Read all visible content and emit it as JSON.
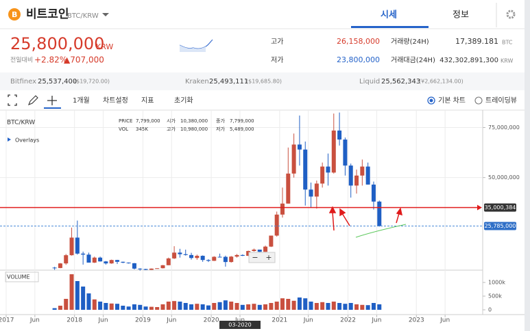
{
  "header": {
    "title": "비트코인",
    "pair": "BTC/KRW",
    "tabs": [
      "시세",
      "정보"
    ]
  },
  "summary": {
    "price": "25,800,000",
    "currency": "KRW",
    "change_label": "전일대비",
    "change_pct": "+2.82%",
    "change_abs": "▲707,000",
    "high_label": "고가",
    "high": "26,158,000",
    "low_label": "저가",
    "low": "23,800,000",
    "volume_label": "거래량(24H)",
    "volume": "17,389.181",
    "volume_unit": "BTC",
    "amount_label": "거래대금(24H)",
    "amount": "432,302,891,300",
    "amount_unit": "KRW"
  },
  "exchanges": [
    {
      "name": "Bitfinex",
      "price": "25,537,400",
      "converted": "($19,720.00)"
    },
    {
      "name": "Kraken",
      "price": "25,493,111",
      "converted": "($19,685.80)"
    },
    {
      "name": "Liquid",
      "price": "25,562,343",
      "converted": "(¥2,662,134.00)"
    }
  ],
  "toolbar": {
    "period": "1개월",
    "settings": "차트설정",
    "indicators": "지표",
    "reset": "초기화",
    "basic_chart": "기본 차트",
    "tradingview": "트레이딩뷰"
  },
  "chart_info": {
    "price_label": "PRICE",
    "price": "7,799,000",
    "vol_label": "VOL",
    "vol": "345K",
    "open_label": "시가",
    "open": "10,380,000",
    "high_label": "고가",
    "high": "10,980,000",
    "close_label": "종가",
    "close": "7,799,000",
    "low_label": "저가",
    "low": "5,489,000"
  },
  "chart_controls": {
    "zoom_out": "−",
    "zoom_in": "+"
  },
  "chart_data": {
    "type": "candlestick",
    "title": "BTC/KRW",
    "overlays": "Overlays",
    "volume_title": "VOLUME",
    "cursor_label": "03-2020",
    "up_color": "#c9503f",
    "down_color": "#1f5fc4",
    "categories": [
      "09-2017",
      "10-2017",
      "11-2017",
      "12-2017",
      "01-2018",
      "02-2018",
      "03-2018",
      "04-2018",
      "05-2018",
      "06-2018",
      "07-2018",
      "08-2018",
      "09-2018",
      "10-2018",
      "11-2018",
      "12-2018",
      "01-2019",
      "02-2019",
      "03-2019",
      "04-2019",
      "05-2019",
      "06-2019",
      "07-2019",
      "08-2019",
      "09-2019",
      "10-2019",
      "11-2019",
      "12-2019",
      "01-2020",
      "02-2020",
      "03-2020",
      "04-2020",
      "05-2020",
      "06-2020",
      "07-2020",
      "08-2020",
      "09-2020",
      "10-2020",
      "11-2020",
      "12-2020",
      "01-2021",
      "02-2021",
      "03-2021",
      "04-2021",
      "05-2021",
      "06-2021",
      "07-2021",
      "08-2021",
      "09-2021",
      "10-2021",
      "11-2021",
      "12-2021",
      "01-2022",
      "02-2022",
      "03-2022",
      "04-2022",
      "05-2022",
      "06-2022"
    ],
    "open": [
      5000000,
      4800000,
      7100000,
      11200000,
      20000000,
      12000000,
      11500000,
      7500000,
      10000000,
      8100000,
      7100000,
      8800000,
      7900000,
      7500000,
      7200000,
      4500000,
      4300000,
      3900000,
      4500000,
      4700000,
      6200000,
      9600000,
      12500000,
      11700000,
      11300000,
      9800000,
      10900000,
      8800000,
      8400000,
      10400000,
      10380000,
      7799000,
      10500000,
      11300000,
      10900000,
      13300000,
      14000000,
      12900000,
      15500000,
      21000000,
      31500000,
      37000000,
      52000000,
      66500000,
      64000000,
      44000000,
      40500000,
      47000000,
      55500000,
      52500000,
      73500000,
      69000000,
      56000000,
      46000000,
      51000000,
      55500000,
      46500000,
      38000000
    ],
    "high": [
      5400000,
      7300000,
      11800000,
      25000000,
      28500000,
      13000000,
      12500000,
      10500000,
      10500000,
      8300000,
      9000000,
      8900000,
      8000000,
      7600000,
      7300000,
      4700000,
      4400000,
      4600000,
      4700000,
      6300000,
      10000000,
      15700000,
      14400000,
      14000000,
      12400000,
      11500000,
      11100000,
      9200000,
      10700000,
      12000000,
      10980000,
      10800000,
      11800000,
      11600000,
      13500000,
      14500000,
      14000000,
      16000000,
      21000000,
      33000000,
      45000000,
      65000000,
      72000000,
      81000000,
      68000000,
      47500000,
      48500000,
      57500000,
      62000000,
      82000000,
      82500000,
      70000000,
      57000000,
      54000000,
      59000000,
      57500000,
      48000000,
      38500000
    ],
    "low": [
      3900000,
      4700000,
      6400000,
      11000000,
      11500000,
      6500000,
      7500000,
      7300000,
      8000000,
      6500000,
      6900000,
      6800000,
      7200000,
      7000000,
      4100000,
      3500000,
      3800000,
      3800000,
      4400000,
      4600000,
      6200000,
      9300000,
      10000000,
      11000000,
      9000000,
      8900000,
      7900000,
      7800000,
      8300000,
      10100000,
      5489000,
      7500000,
      10000000,
      10800000,
      10800000,
      13000000,
      12500000,
      12900000,
      15300000,
      20500000,
      30000000,
      37000000,
      50000000,
      56000000,
      36000000,
      35000000,
      34500000,
      45000000,
      46000000,
      52000000,
      66000000,
      51000000,
      40000000,
      42000000,
      46000000,
      46500000,
      34000000,
      25500000
    ],
    "close": [
      4800000,
      7100000,
      11200000,
      20000000,
      12000000,
      11500000,
      7500000,
      10000000,
      8100000,
      7100000,
      8800000,
      7900000,
      7500000,
      7200000,
      4500000,
      4300000,
      3900000,
      4500000,
      4700000,
      6200000,
      9600000,
      12500000,
      11700000,
      11300000,
      9800000,
      10900000,
      8800000,
      8400000,
      10400000,
      10380000,
      7799000,
      10500000,
      11300000,
      10900000,
      13300000,
      14000000,
      12900000,
      15500000,
      21000000,
      31500000,
      37000000,
      52000000,
      66500000,
      64000000,
      44000000,
      40500000,
      47000000,
      55500000,
      52500000,
      73500000,
      69000000,
      56000000,
      46000000,
      51000000,
      55500000,
      46500000,
      38000000,
      25800000
    ],
    "volume": [
      60000,
      150000,
      400000,
      1300000,
      1050000,
      850000,
      600000,
      380000,
      300000,
      250000,
      230000,
      220000,
      150000,
      120000,
      200000,
      180000,
      120000,
      110000,
      100000,
      200000,
      300000,
      320000,
      300000,
      250000,
      200000,
      220000,
      200000,
      160000,
      250000,
      280000,
      345000,
      300000,
      250000,
      180000,
      200000,
      220000,
      180000,
      200000,
      250000,
      300000,
      420000,
      400000,
      330000,
      450000,
      420000,
      300000,
      250000,
      280000,
      250000,
      300000,
      250000,
      220000,
      250000,
      200000,
      180000,
      170000,
      250000,
      200000
    ],
    "ylim": [
      3400000,
      82000000
    ],
    "yticks": [
      {
        "value": 75000000,
        "label": "75,000,000"
      },
      {
        "value": 50000000,
        "label": "50,000,000"
      }
    ],
    "volume_ylim": [
      0,
      1400000
    ],
    "volume_yticks": [
      {
        "value": 1000000,
        "label": "1000k"
      },
      {
        "value": 500000,
        "label": "500k"
      },
      {
        "value": 0,
        "label": "0"
      }
    ],
    "xlim": [
      2016.91,
      2023.97
    ],
    "xticks": [
      {
        "value": 2017,
        "label": "2017"
      },
      {
        "value": 2017.42,
        "label": "Jun"
      },
      {
        "value": 2018,
        "label": "2018"
      },
      {
        "value": 2018.42,
        "label": "Jun"
      },
      {
        "value": 2019,
        "label": "2019"
      },
      {
        "value": 2019.42,
        "label": "Jun"
      },
      {
        "value": 2020,
        "label": "2020"
      },
      {
        "value": 2020.42,
        "label": "Jun"
      },
      {
        "value": 2021,
        "label": "2021"
      },
      {
        "value": 2021.42,
        "label": "Jun"
      },
      {
        "value": 2022,
        "label": "2022"
      },
      {
        "value": 2022.42,
        "label": "Jun"
      },
      {
        "value": 2023,
        "label": "2023"
      },
      {
        "value": 2023.42,
        "label": "Jun"
      }
    ],
    "price_lines": [
      {
        "value": 35000384,
        "label": "35,000,384",
        "color": "#e01b1b",
        "style": "solid"
      },
      {
        "value": 25785000,
        "label": "25,785,000",
        "color": "#4a8ad8",
        "style": "dashed"
      }
    ],
    "grid": true
  }
}
